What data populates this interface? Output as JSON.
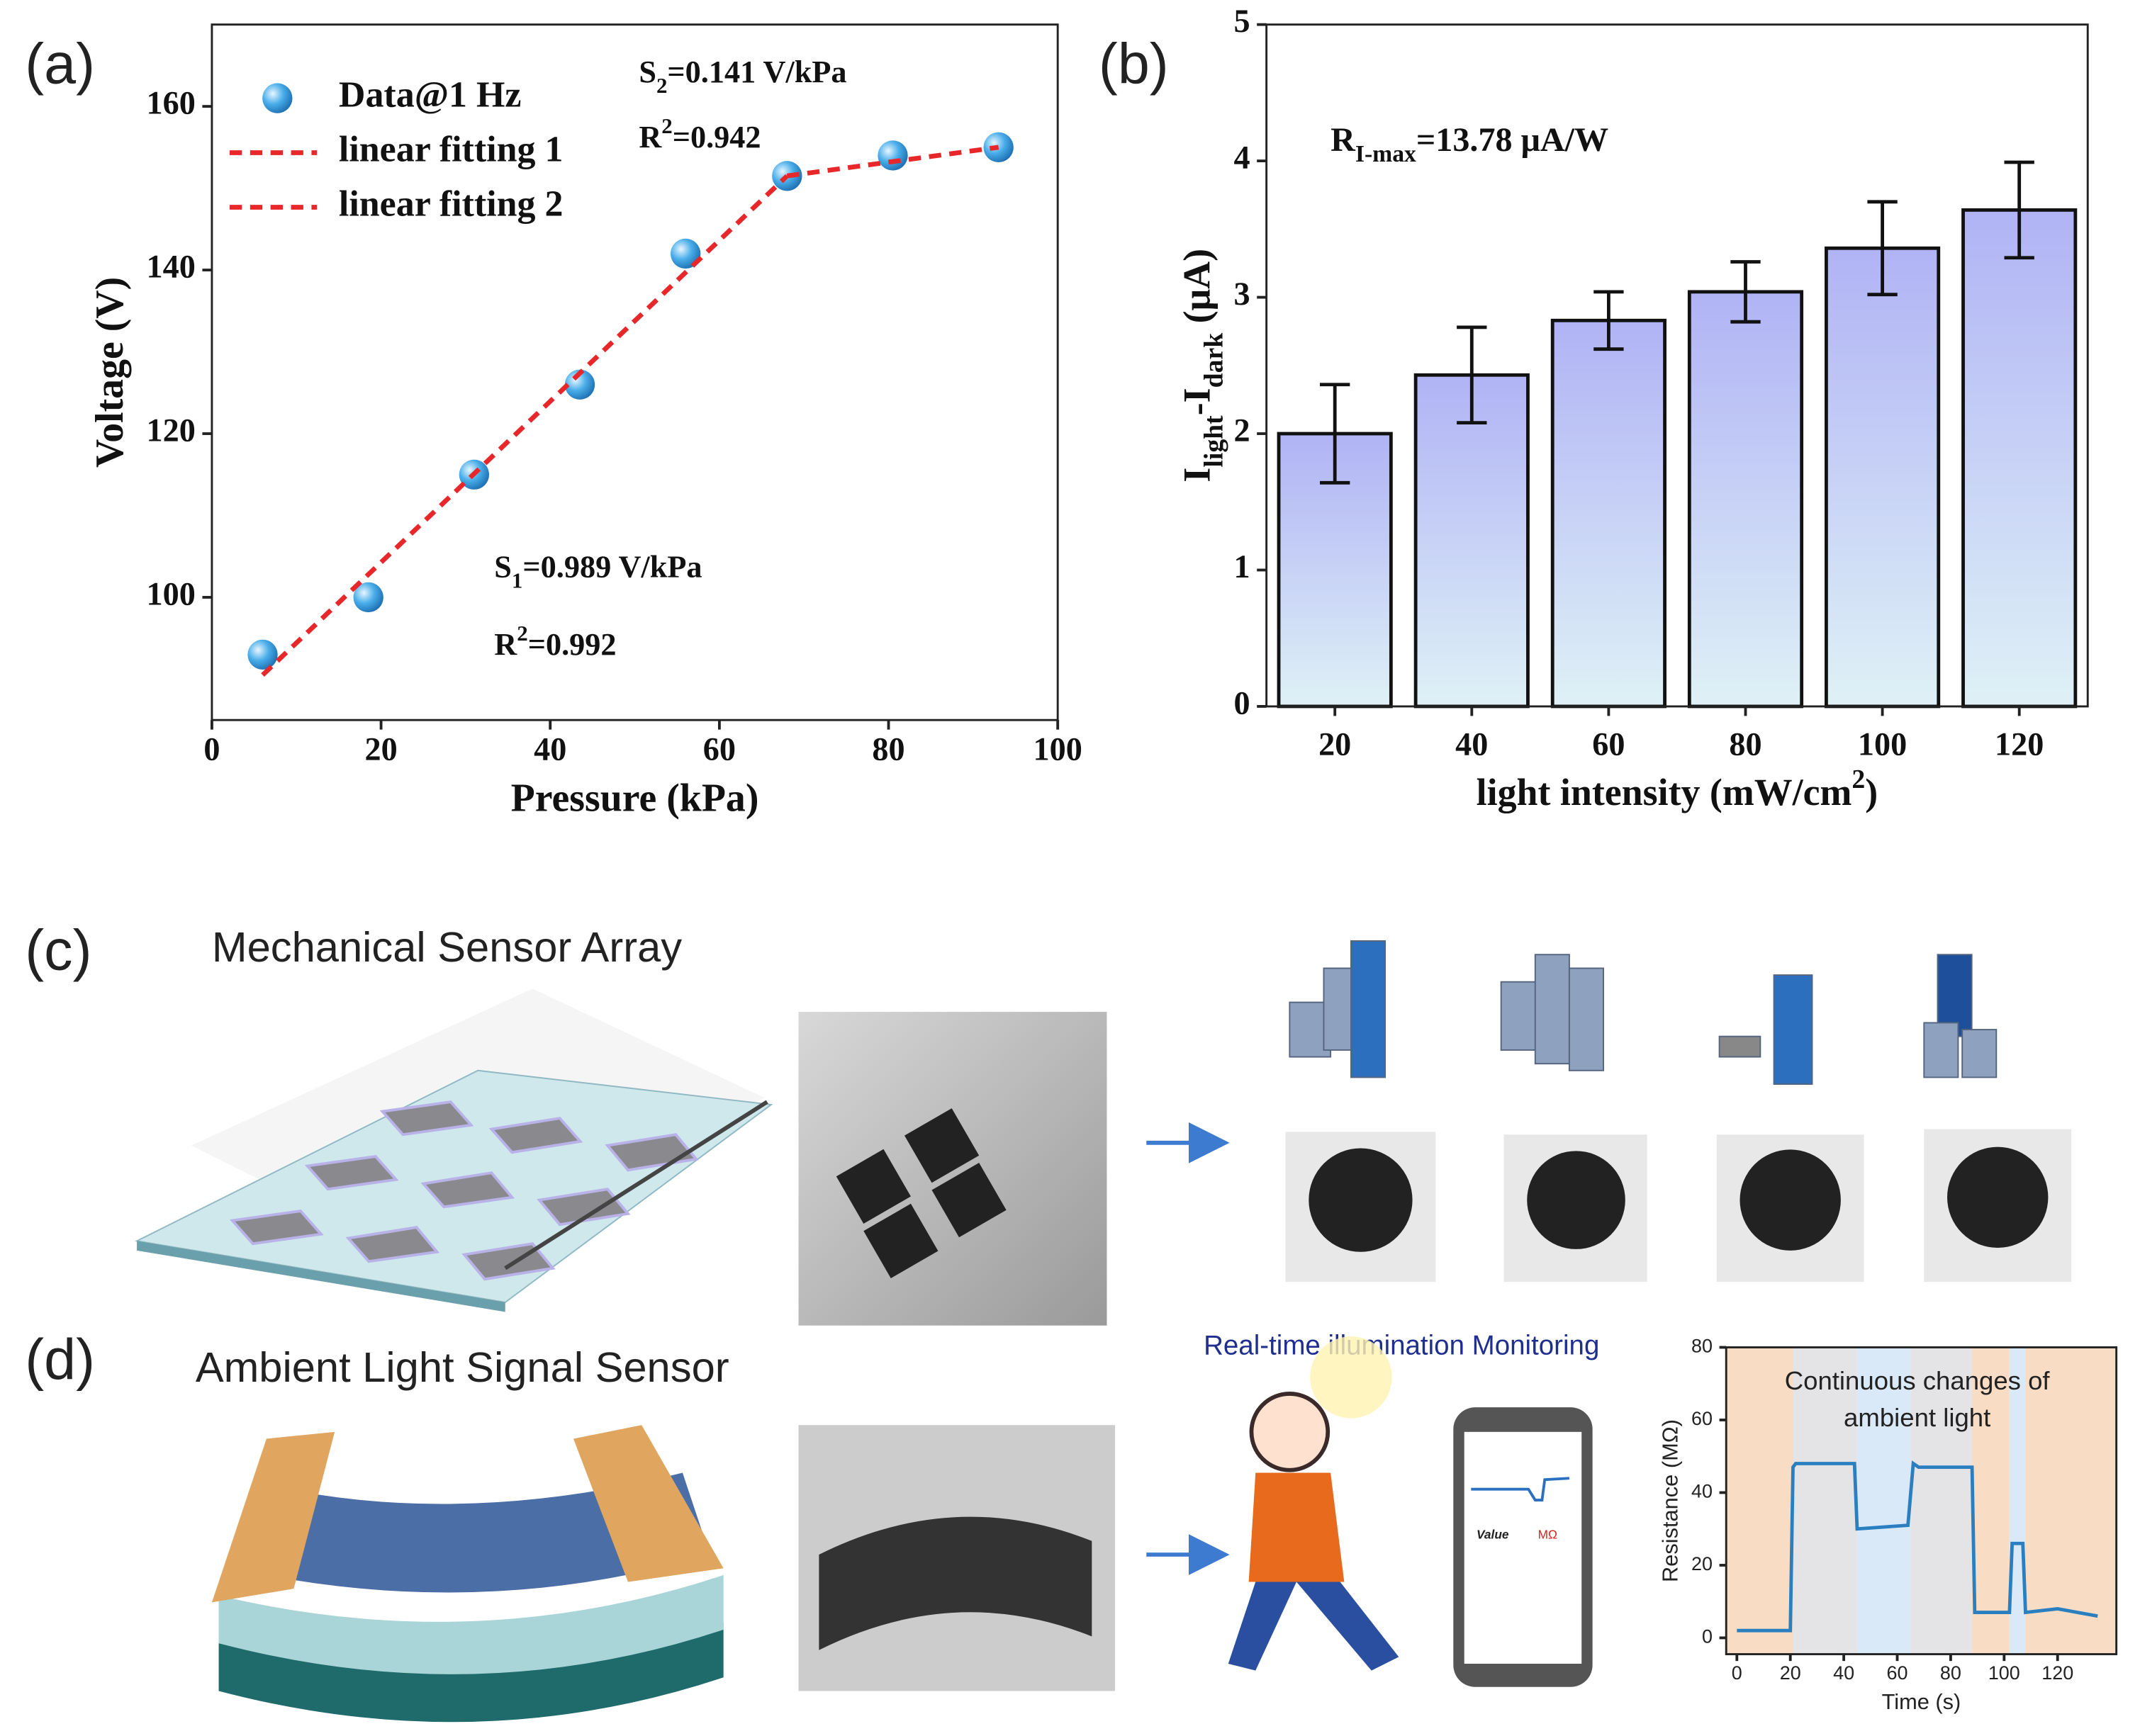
{
  "figure": {
    "panel_labels": [
      "(a)",
      "(b)",
      "(c)",
      "(d)"
    ],
    "c_title": "Mechanical Sensor Array",
    "d_title": "Ambient Light Signal Sensor",
    "d_caption": "Real-time illumination Monitoring",
    "phone_labels": [
      "Value",
      "MΩ"
    ]
  },
  "chart_data": [
    {
      "type": "scatter",
      "xlabel": "Pressure (kPa)",
      "ylabel": "Voltage (V)",
      "xlim": [
        0,
        100
      ],
      "xticks": [
        0,
        20,
        40,
        60,
        80,
        100
      ],
      "ylim": [
        85,
        170
      ],
      "yticks": [
        100,
        120,
        140,
        160
      ],
      "legend": "top-left",
      "series": [
        {
          "name": "Data@1 Hz",
          "color": "#3a9ee0",
          "marker": "circle",
          "x": [
            6,
            18.5,
            31,
            43.5,
            56,
            68,
            80.5,
            93
          ],
          "values": [
            93,
            100,
            115,
            126,
            142,
            151.5,
            154,
            155
          ]
        },
        {
          "name": "linear fitting 1",
          "color": "#e8272a",
          "line_style": "dashed",
          "x": [
            6,
            68
          ],
          "values": [
            90.5,
            151.5
          ]
        },
        {
          "name": "linear fitting 2",
          "color": "#e8272a",
          "line_style": "dashed",
          "x": [
            68,
            93
          ],
          "values": [
            151.5,
            155
          ]
        }
      ],
      "annotations": [
        [
          {
            "text": "S"
          },
          {
            "text": "1",
            "sub": true
          },
          {
            "text": "=0.989 V/kPa"
          }
        ],
        [
          {
            "text": "R"
          },
          {
            "text": "2",
            "sup": true
          },
          {
            "text": "=0.992"
          }
        ],
        [
          {
            "text": "S"
          },
          {
            "text": "2",
            "sub": true
          },
          {
            "text": "=0.141 V/kPa"
          }
        ],
        [
          {
            "text": "R"
          },
          {
            "text": "2",
            "sup": true
          },
          {
            "text": "=0.942"
          }
        ]
      ]
    },
    {
      "type": "bar",
      "xlabel": [
        {
          "text": "light intensity (mW/cm"
        },
        {
          "text": "2",
          "sup": true
        },
        {
          "text": ")"
        }
      ],
      "ylabel": [
        {
          "text": "I"
        },
        {
          "text": "light",
          "sub": true
        },
        {
          "text": "-I"
        },
        {
          "text": "dark",
          "sub": true
        },
        {
          "text": " (μA)"
        }
      ],
      "categories": [
        "20",
        "40",
        "60",
        "80",
        "100",
        "120"
      ],
      "values": [
        2.0,
        2.43,
        2.83,
        3.04,
        3.36,
        3.64
      ],
      "errors": [
        0.36,
        0.35,
        0.21,
        0.22,
        0.34,
        0.35
      ],
      "color": "#b3b6f4",
      "ylim": [
        0,
        5
      ],
      "yticks": [
        0,
        1,
        2,
        3,
        4,
        5
      ],
      "annotations": [
        [
          {
            "text": "R"
          },
          {
            "text": "I-max",
            "sub": true
          },
          {
            "text": "=13.78 μA/W"
          }
        ]
      ]
    },
    {
      "type": "line",
      "xlabel": "Time (s)",
      "ylabel": "Resistance (MΩ)",
      "xlim": [
        -4,
        142
      ],
      "xticks": [
        0,
        20,
        40,
        60,
        80,
        100,
        120
      ],
      "ylim": [
        -4.5,
        80
      ],
      "yticks": [
        0,
        20,
        40,
        60,
        80
      ],
      "series": [
        {
          "color": "#2a7fc0",
          "x": [
            0,
            20,
            21,
            22,
            44,
            45,
            64,
            66,
            68,
            88,
            89,
            102,
            103,
            107,
            108,
            120,
            135
          ],
          "values": [
            2,
            2,
            47,
            48,
            48,
            30,
            31,
            48,
            47,
            47,
            7,
            7,
            26,
            26,
            7,
            8,
            6
          ]
        }
      ],
      "bands": [
        {
          "x": [
            -4,
            21
          ],
          "color": "#f9dcc4"
        },
        {
          "x": [
            21,
            45
          ],
          "color": "#e4e4e6"
        },
        {
          "x": [
            45,
            65
          ],
          "color": "#d9e9f8"
        },
        {
          "x": [
            65,
            88
          ],
          "color": "#e4e4e6"
        },
        {
          "x": [
            88,
            102
          ],
          "color": "#f9dcc4"
        },
        {
          "x": [
            102,
            108
          ],
          "color": "#d9e9f8"
        },
        {
          "x": [
            108,
            142
          ],
          "color": "#f9dcc4"
        }
      ],
      "annotations": [
        "Continuous changes of",
        "ambient light"
      ]
    }
  ]
}
